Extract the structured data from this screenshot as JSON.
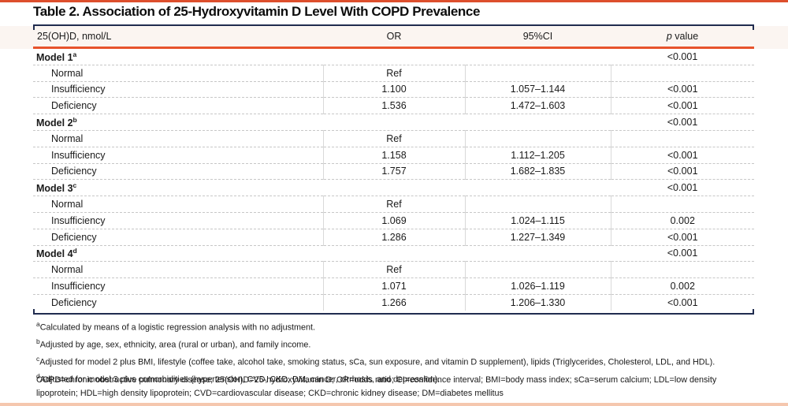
{
  "title": "Table 2. Association of 25-Hydroxyvitamin D Level With COPD Prevalence",
  "colors": {
    "accent_orange": "#e7532c",
    "navy_rule": "#202c4f",
    "top_bar": "#dd4f2d",
    "bottom_bar": "#f5c7ae",
    "header_band": "#fbf5f1",
    "grid_line": "#c7c7c7"
  },
  "table": {
    "columns": [
      {
        "label": "25(OH)D, nmol/L"
      },
      {
        "label": "OR"
      },
      {
        "label": "95%CI"
      },
      {
        "em": "p",
        "label": " value"
      }
    ],
    "groups": [
      {
        "label": "Model 1",
        "sup": "a",
        "p": "<0.001",
        "rows": [
          {
            "label": "Normal",
            "or": "Ref",
            "ci": "",
            "p": ""
          },
          {
            "label": "Insufficiency",
            "or": "1.100",
            "ci": "1.057–1.144",
            "p": "<0.001"
          },
          {
            "label": "Deficiency",
            "or": "1.536",
            "ci": "1.472–1.603",
            "p": "<0.001"
          }
        ]
      },
      {
        "label": "Model 2",
        "sup": "b",
        "p": "<0.001",
        "rows": [
          {
            "label": "Normal",
            "or": "Ref",
            "ci": "",
            "p": ""
          },
          {
            "label": "Insufficiency",
            "or": "1.158",
            "ci": "1.112–1.205",
            "p": "<0.001"
          },
          {
            "label": "Deficiency",
            "or": "1.757",
            "ci": "1.682–1.835",
            "p": "<0.001"
          }
        ]
      },
      {
        "label": "Model 3",
        "sup": "c",
        "p": "<0.001",
        "rows": [
          {
            "label": "Normal",
            "or": "Ref",
            "ci": "",
            "p": ""
          },
          {
            "label": "Insufficiency",
            "or": "1.069",
            "ci": "1.024–1.115",
            "p": "0.002"
          },
          {
            "label": "Deficiency",
            "or": "1.286",
            "ci": "1.227–1.349",
            "p": "<0.001"
          }
        ]
      },
      {
        "label": "Model 4",
        "sup": "d",
        "p": "<0.001",
        "rows": [
          {
            "label": "Normal",
            "or": "Ref",
            "ci": "",
            "p": ""
          },
          {
            "label": "Insufficiency",
            "or": "1.071",
            "ci": "1.026–1.119",
            "p": "0.002"
          },
          {
            "label": "Deficiency",
            "or": "1.266",
            "ci": "1.206–1.330",
            "p": "<0.001"
          }
        ]
      }
    ]
  },
  "footnotes": [
    {
      "sup": "a",
      "text": "Calculated by means of a logistic regression analysis with no adjustment."
    },
    {
      "sup": "b",
      "text": "Adjusted by age, sex, ethnicity, area (rural or urban), and family income."
    },
    {
      "sup": "c",
      "text": "Adjusted for model 2 plus BMI, lifestyle (coffee take, alcohol take, smoking status, sCa, sun exposure, and vitamin D supplement), lipids (Triglycerides, Cholesterol, LDL, and HDL)."
    },
    {
      "sup": "d",
      "text": "Adjusted for model 3 plus comorbidities (hypertension, CVD, CKD, DM, cancer, cirrhosis, and depression)."
    }
  ],
  "abbreviations": "COPD=chronic obstructive pulmonary disease; 25(OH)D=25-hydroxyvitamin D; OR=odds ratio; CI=confidence interval; BMI=body mass index; sCa=serum calcium; LDL=low density lipoprotein; HDL=high density lipoprotein; CVD=cardiovascular disease; CKD=chronic kidney disease; DM=diabetes mellitus"
}
